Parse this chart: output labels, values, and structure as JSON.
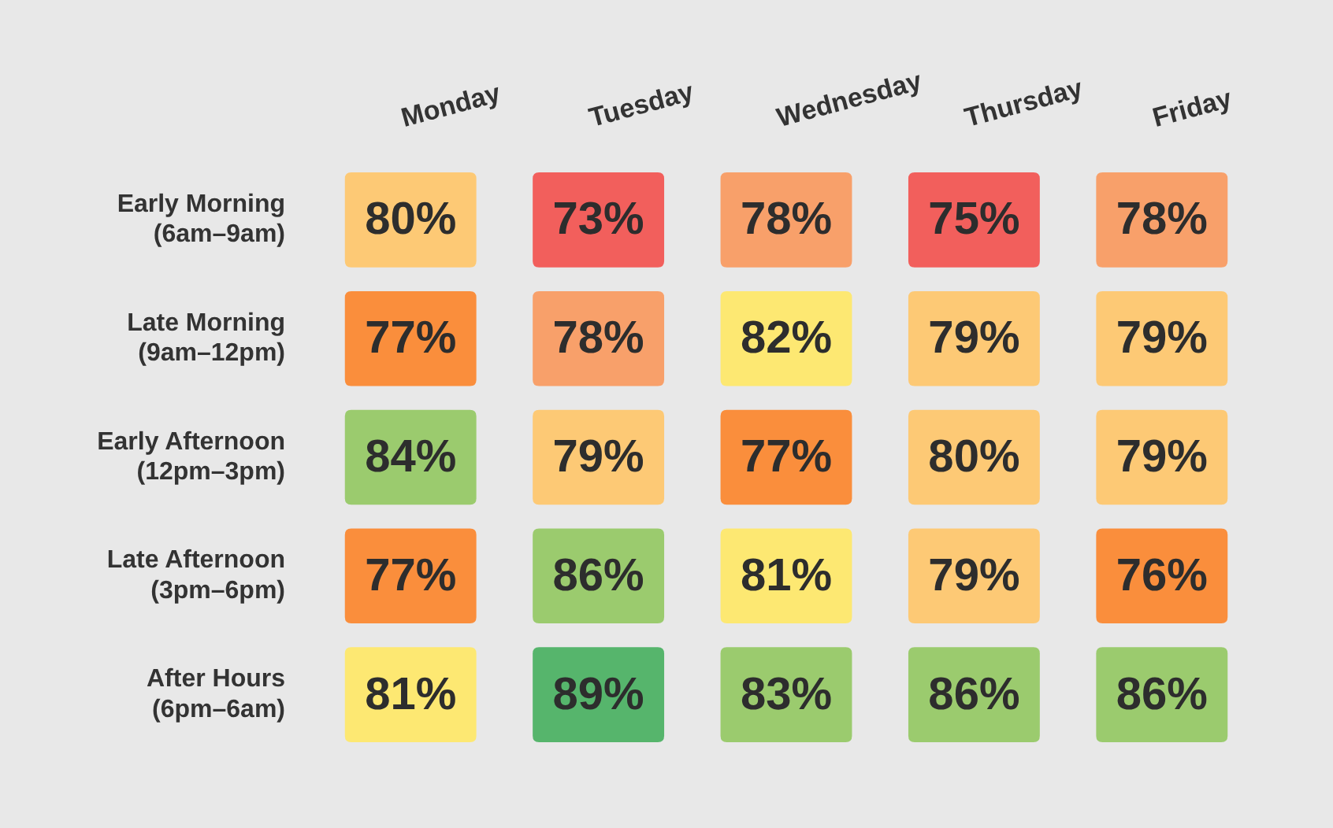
{
  "chart_data": {
    "type": "heatmap",
    "categories": [
      "Monday",
      "Tuesday",
      "Wednesday",
      "Thursday",
      "Friday"
    ],
    "y_categories": [
      "Early Morning\n(6am–9am)",
      "Late Morning\n(9am–12pm)",
      "Early Afternoon\n(12pm–3pm)",
      "Late Afternoon\n(3pm–6pm)",
      "After Hours\n(6pm–6am)"
    ],
    "cells": [
      [
        80,
        73,
        78,
        75,
        78
      ],
      [
        77,
        78,
        82,
        79,
        79
      ],
      [
        84,
        79,
        77,
        80,
        79
      ],
      [
        77,
        86,
        81,
        79,
        76
      ],
      [
        81,
        89,
        83,
        86,
        86
      ]
    ],
    "cell_labels": [
      [
        "80%",
        "73%",
        "78%",
        "75%",
        "78%"
      ],
      [
        "77%",
        "78%",
        "82%",
        "79%",
        "79%"
      ],
      [
        "84%",
        "79%",
        "77%",
        "80%",
        "79%"
      ],
      [
        "77%",
        "86%",
        "81%",
        "79%",
        "76%"
      ],
      [
        "81%",
        "89%",
        "83%",
        "86%",
        "86%"
      ]
    ],
    "colors": [
      [
        "#fdc975",
        "#f25f5c",
        "#f8a06a",
        "#f25f5c",
        "#f8a06a"
      ],
      [
        "#fa8e3c",
        "#f8a06a",
        "#fde872",
        "#fdc975",
        "#fdc975"
      ],
      [
        "#9bcb6e",
        "#fdc975",
        "#fa8e3c",
        "#fdc975",
        "#fdc975"
      ],
      [
        "#fa8e3c",
        "#9bcb6e",
        "#fde872",
        "#fdc975",
        "#fa8e3c"
      ],
      [
        "#fde872",
        "#56b56c",
        "#9bcb6e",
        "#9bcb6e",
        "#9bcb6e"
      ]
    ]
  }
}
